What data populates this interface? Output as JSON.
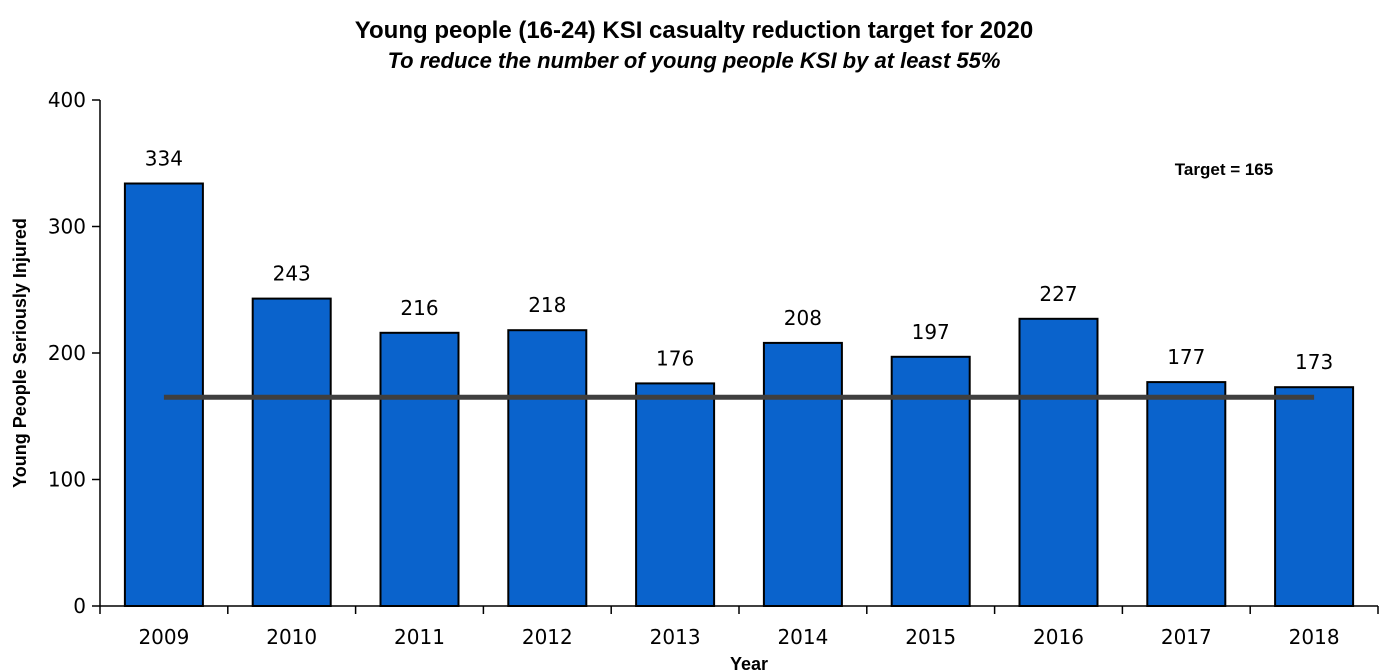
{
  "chart_data": {
    "type": "bar",
    "title": "Young people (16-24) KSI casualty reduction target for 2020",
    "subtitle": "To reduce the number of young people KSI by at least 55%",
    "xlabel": "Year",
    "ylabel": "Young People Seriously Injured",
    "categories": [
      "2009",
      "2010",
      "2011",
      "2012",
      "2013",
      "2014",
      "2015",
      "2016",
      "2017",
      "2018"
    ],
    "values": [
      334,
      243,
      216,
      218,
      176,
      208,
      197,
      227,
      177,
      173
    ],
    "ylim": [
      0,
      400
    ],
    "yticks": [
      0,
      100,
      200,
      300,
      400
    ],
    "target": {
      "value": 165,
      "label": "Target = 165"
    },
    "bar_color": "#0a63cc",
    "target_line_color": "#3f3f3f",
    "grid": false,
    "legend": "none"
  }
}
